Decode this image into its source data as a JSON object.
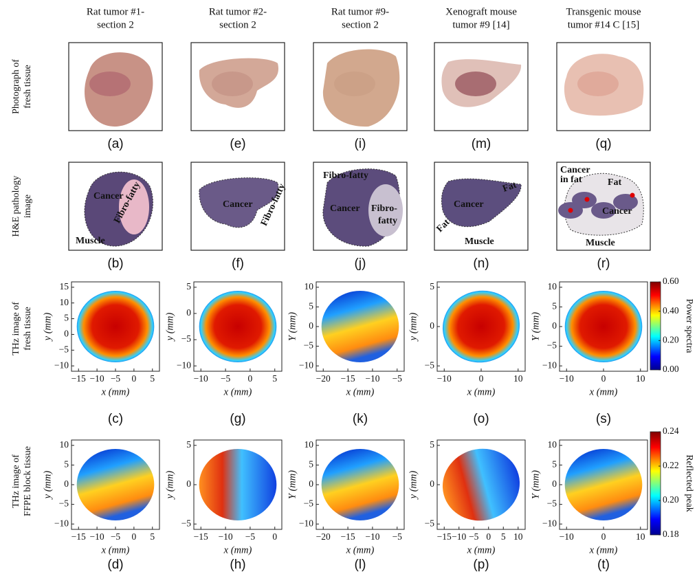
{
  "row_labels": [
    [
      "Photograph of",
      "fresh tissue"
    ],
    [
      "H&E pathology",
      "image"
    ],
    [
      "THz image of",
      "fresh tissue"
    ],
    [
      "THz image of",
      "FFPE block tissue"
    ]
  ],
  "columns": [
    {
      "title": [
        "Rat tumor #1-",
        "section 2"
      ],
      "photo_label": "(a)",
      "he_label": "(b)",
      "he_annotations": [
        {
          "text": "Cancer",
          "color": "#ffffff"
        },
        {
          "text": "Fibro-fatty",
          "color": "#111111"
        },
        {
          "text": "Muscle",
          "color": "#111111"
        }
      ],
      "fresh": {
        "label": "(c)",
        "xlabel": "x (mm)",
        "ylabel": "y (mm)",
        "xticks": [
          "−15",
          "−10",
          "−5",
          "0",
          "5"
        ],
        "yticks": [
          "15",
          "10",
          "5",
          "0",
          "−5",
          "−10"
        ]
      },
      "ffpe": {
        "label": "(d)",
        "xlabel": "x (mm)",
        "ylabel": "y (mm)",
        "xticks": [
          "−15",
          "−10",
          "−5",
          "0",
          "5"
        ],
        "yticks": [
          "10",
          "5",
          "0",
          "−5",
          "−10"
        ]
      }
    },
    {
      "title": [
        "Rat tumor #2-",
        "section 2"
      ],
      "photo_label": "(e)",
      "he_label": "(f)",
      "he_annotations": [
        {
          "text": "Cancer",
          "color": "#ffffff"
        },
        {
          "text": "Fibro-fatty",
          "color": "#111111"
        }
      ],
      "fresh": {
        "label": "(g)",
        "xlabel": "x (mm)",
        "ylabel": "y (mm)",
        "xticks": [
          "−10",
          "−5",
          "0",
          "5"
        ],
        "yticks": [
          "5",
          "0",
          "−5",
          "−10"
        ]
      },
      "ffpe": {
        "label": "(h)",
        "xlabel": "x (mm)",
        "ylabel": "y (mm)",
        "xticks": [
          "−15",
          "−10",
          "−5",
          "0"
        ],
        "yticks": [
          "5",
          "0",
          "−5"
        ]
      }
    },
    {
      "title": [
        "Rat tumor #9-",
        "section 2"
      ],
      "photo_label": "(i)",
      "he_label": "(j)",
      "he_annotations": [
        {
          "text": "Fibro-fatty",
          "color": "#111111"
        },
        {
          "text": "Cancer",
          "color": "#ffffff"
        },
        {
          "text": "Fibro-",
          "color": "#111111"
        },
        {
          "text": "fatty",
          "color": "#111111"
        }
      ],
      "fresh": {
        "label": "(k)",
        "xlabel": "x (mm)",
        "ylabel": "Y (mm)",
        "xticks": [
          "−20",
          "−15",
          "−10",
          "−5"
        ],
        "yticks": [
          "10",
          "5",
          "0",
          "−5",
          "−10"
        ]
      },
      "ffpe": {
        "label": "(l)",
        "xlabel": "x (mm)",
        "ylabel": "Y (mm)",
        "xticks": [
          "−20",
          "−15",
          "−10",
          "−5"
        ],
        "yticks": [
          "10",
          "5",
          "0",
          "−5",
          "−10"
        ]
      }
    },
    {
      "title": [
        "Xenograft mouse",
        "tumor #9 [14]"
      ],
      "photo_label": "(m)",
      "he_label": "(n)",
      "he_annotations": [
        {
          "text": "Cancer",
          "color": "#ffff00"
        },
        {
          "text": "Fat",
          "color": "#111111"
        },
        {
          "text": "Fat",
          "color": "#111111"
        },
        {
          "text": "Muscle",
          "color": "#111111"
        }
      ],
      "fresh": {
        "label": "(o)",
        "xlabel": "x (mm)",
        "ylabel": "y (mm)",
        "xticks": [
          "−10",
          "0",
          "10"
        ],
        "yticks": [
          "5",
          "0",
          "−5"
        ]
      },
      "ffpe": {
        "label": "(p)",
        "xlabel": "x (mm)",
        "ylabel": "y (mm)",
        "xticks": [
          "−15",
          "−10",
          "−5",
          "0",
          "5",
          "10"
        ],
        "yticks": [
          "5",
          "0",
          "−5"
        ]
      }
    },
    {
      "title": [
        "Transgenic mouse",
        "tumor #14 C [15]"
      ],
      "photo_label": "(q)",
      "he_label": "(r)",
      "he_annotations": [
        {
          "text": "Cancer",
          "color": "#111111"
        },
        {
          "text": "in fat",
          "color": "#111111"
        },
        {
          "text": "Fat",
          "color": "#111111"
        },
        {
          "text": "Cancer",
          "color": "#ffff00"
        },
        {
          "text": "Muscle",
          "color": "#111111"
        }
      ],
      "fresh": {
        "label": "(s)",
        "xlabel": "x (mm)",
        "ylabel": "Y (mm)",
        "xticks": [
          "−10",
          "0",
          "10"
        ],
        "yticks": [
          "10",
          "5",
          "0",
          "−5",
          "−10"
        ]
      },
      "ffpe": {
        "label": "(t)",
        "xlabel": "x (mm)",
        "ylabel": "Y (mm)",
        "xticks": [
          "−10",
          "0",
          "10"
        ],
        "yticks": [
          "10",
          "5",
          "0",
          "−5",
          "−10"
        ]
      }
    }
  ],
  "colorbars": [
    {
      "label": "Power spectra",
      "ticks": [
        "0.60",
        "0.40",
        "0.20",
        "0.00"
      ]
    },
    {
      "label": "Reflected peak",
      "ticks": [
        "0.24",
        "0.22",
        "0.20",
        "0.18"
      ]
    }
  ]
}
